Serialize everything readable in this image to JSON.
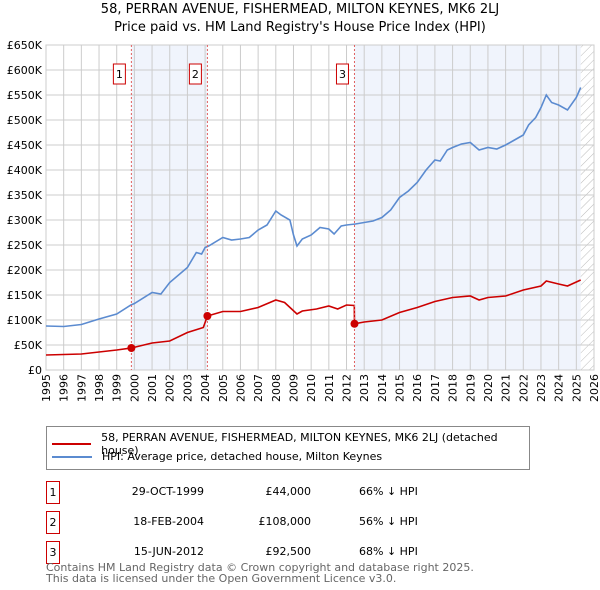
{
  "chart_data": {
    "type": "line",
    "title": "58, PERRAN AVENUE, FISHERMEAD, MILTON KEYNES, MK6 2LJ",
    "subtitle": "Price paid vs. HM Land Registry's House Price Index (HPI)",
    "xlim": [
      1995,
      2026
    ],
    "ylim": [
      0,
      650000
    ],
    "x_ticks": [
      "1995",
      "1996",
      "1997",
      "1998",
      "1999",
      "2000",
      "2001",
      "2002",
      "2003",
      "2004",
      "2005",
      "2006",
      "2007",
      "2008",
      "2009",
      "2010",
      "2011",
      "2012",
      "2013",
      "2014",
      "2015",
      "2016",
      "2017",
      "2018",
      "2019",
      "2020",
      "2021",
      "2022",
      "2023",
      "2024",
      "2025",
      "2026"
    ],
    "y_ticks": [
      {
        "v": 0,
        "label": "£0"
      },
      {
        "v": 50000,
        "label": "£50K"
      },
      {
        "v": 100000,
        "label": "£100K"
      },
      {
        "v": 150000,
        "label": "£150K"
      },
      {
        "v": 200000,
        "label": "£200K"
      },
      {
        "v": 250000,
        "label": "£250K"
      },
      {
        "v": 300000,
        "label": "£300K"
      },
      {
        "v": 350000,
        "label": "£350K"
      },
      {
        "v": 400000,
        "label": "£400K"
      },
      {
        "v": 450000,
        "label": "£450K"
      },
      {
        "v": 500000,
        "label": "£500K"
      },
      {
        "v": 550000,
        "label": "£550K"
      },
      {
        "v": 600000,
        "label": "£600K"
      },
      {
        "v": 650000,
        "label": "£650K"
      }
    ],
    "grid": true,
    "shaded_ranges": [
      [
        1999.83,
        2004.13
      ],
      [
        2012.45,
        2025.25
      ]
    ],
    "forecast_hatch_from": 2025.25,
    "series": [
      {
        "name": "58, PERRAN AVENUE, FISHERMEAD, MILTON KEYNES, MK6 2LJ (detached house)",
        "color": "#cc0000",
        "x": [
          1995,
          1997,
          1999,
          1999.83,
          2001,
          2002,
          2003,
          2003.9,
          2004.13,
          2005,
          2006,
          2007,
          2008,
          2008.5,
          2009.2,
          2009.5,
          2010.3,
          2011,
          2011.5,
          2012,
          2012.44,
          2012.45,
          2013,
          2014,
          2015,
          2016,
          2017,
          2018,
          2019,
          2019.5,
          2020,
          2021,
          2022,
          2023,
          2023.3,
          2024,
          2024.5,
          2025.25
        ],
        "y": [
          30000,
          32000,
          40000,
          44000,
          54000,
          58000,
          75000,
          85000,
          108000,
          117000,
          117000,
          125000,
          140000,
          135000,
          112000,
          118000,
          122000,
          128000,
          122000,
          130000,
          129000,
          92500,
          96000,
          100000,
          115000,
          125000,
          137000,
          145000,
          148000,
          140000,
          145000,
          148000,
          160000,
          168000,
          178000,
          172000,
          168000,
          180000
        ]
      },
      {
        "name": "HPI: Average price, detached house, Milton Keynes",
        "color": "#5b8bd0",
        "x": [
          1995,
          1996,
          1997,
          1998,
          1999,
          1999.8,
          2000,
          2001,
          2001.5,
          2002,
          2003,
          2003.5,
          2003.8,
          2004,
          2004.2,
          2005,
          2005.5,
          2006,
          2006.5,
          2007,
          2007.5,
          2008,
          2008.3,
          2008.8,
          2009,
          2009.2,
          2009.5,
          2010,
          2010.5,
          2011,
          2011.3,
          2011.7,
          2012,
          2012.5,
          2013,
          2013.5,
          2014,
          2014.5,
          2015,
          2015.5,
          2016,
          2016.5,
          2017,
          2017.3,
          2017.7,
          2018,
          2018.5,
          2019,
          2019.5,
          2020,
          2020.5,
          2021,
          2021.5,
          2022,
          2022.3,
          2022.7,
          2023,
          2023.3,
          2023.6,
          2024,
          2024.5,
          2025,
          2025.25
        ],
        "y": [
          88000,
          87000,
          91000,
          102000,
          112000,
          130000,
          133000,
          155000,
          152000,
          175000,
          205000,
          235000,
          232000,
          245000,
          248000,
          265000,
          260000,
          262000,
          265000,
          280000,
          290000,
          318000,
          310000,
          300000,
          270000,
          248000,
          262000,
          270000,
          285000,
          282000,
          272000,
          288000,
          290000,
          292000,
          295000,
          298000,
          305000,
          320000,
          345000,
          358000,
          375000,
          400000,
          420000,
          418000,
          440000,
          445000,
          452000,
          455000,
          440000,
          445000,
          442000,
          450000,
          460000,
          470000,
          490000,
          505000,
          525000,
          550000,
          535000,
          530000,
          520000,
          545000,
          565000
        ]
      }
    ],
    "sales": [
      {
        "id": "1",
        "x": 1999.83,
        "price": 44000,
        "date": "29-OCT-1999",
        "price_label": "£44,000",
        "hpi": "66% ↓ HPI"
      },
      {
        "id": "2",
        "x": 2004.13,
        "price": 108000,
        "date": "18-FEB-2004",
        "price_label": "£108,000",
        "hpi": "56% ↓ HPI"
      },
      {
        "id": "3",
        "x": 2012.45,
        "price": 92500,
        "date": "15-JUN-2012",
        "price_label": "£92,500",
        "hpi": "68% ↓ HPI"
      }
    ]
  },
  "legend": {
    "property": "58, PERRAN AVENUE, FISHERMEAD, MILTON KEYNES, MK6 2LJ (detached house)",
    "hpi": "HPI: Average price, detached house, Milton Keynes"
  },
  "footer": {
    "line1": "Contains HM Land Registry data © Crown copyright and database right 2025.",
    "line2": "This data is licensed under the Open Government Licence v3.0."
  }
}
